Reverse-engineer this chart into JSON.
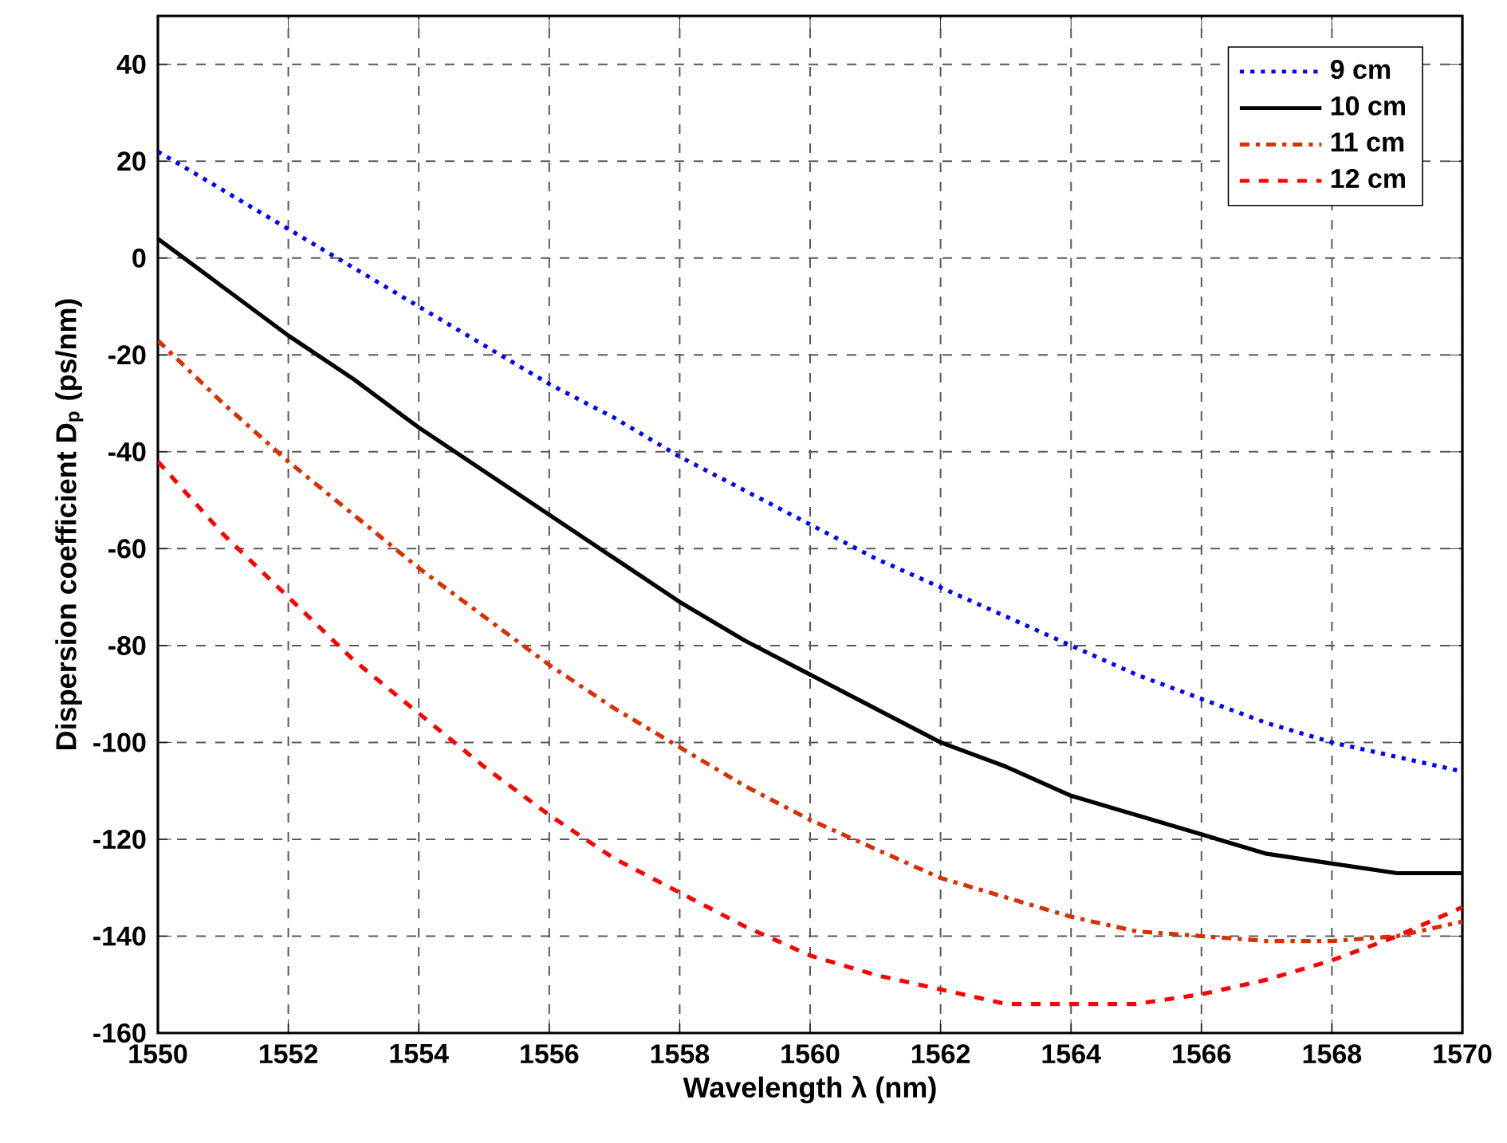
{
  "chart_data": {
    "type": "line",
    "xlabel": "Wavelength λ (nm)",
    "ylabel": "Dispersion coefficient D$_{p}$ (ps/nm)",
    "x": [
      1550,
      1551,
      1552,
      1553,
      1554,
      1555,
      1556,
      1557,
      1558,
      1559,
      1560,
      1561,
      1562,
      1563,
      1564,
      1565,
      1566,
      1567,
      1568,
      1569,
      1570
    ],
    "series": [
      {
        "name": "9 cm",
        "color": "#0000ff",
        "line_style": "dotted",
        "values": [
          22,
          14,
          6,
          -2,
          -10,
          -18,
          -26,
          -33,
          -41,
          -48,
          -55,
          -62,
          -68,
          -74,
          -80,
          -86,
          -91,
          -96,
          -100,
          -103,
          -106
        ]
      },
      {
        "name": "10 cm",
        "color": "#000000",
        "line_style": "solid",
        "values": [
          4,
          -6,
          -16,
          -25,
          -35,
          -44,
          -53,
          -62,
          -71,
          -79,
          -86,
          -93,
          -100,
          -105,
          -111,
          -115,
          -119,
          -123,
          -125,
          -127,
          -127
        ]
      },
      {
        "name": "11 cm",
        "color": "#d93000",
        "line_style": "dashdot",
        "values": [
          -17,
          -30,
          -42,
          -53,
          -64,
          -74,
          -84,
          -93,
          -101,
          -109,
          -116,
          -122,
          -128,
          -132,
          -136,
          -139,
          -140,
          -141,
          -141,
          -140,
          -137
        ]
      },
      {
        "name": "12 cm",
        "color": "#ff0000",
        "line_style": "dashed",
        "values": [
          -42,
          -57,
          -70,
          -83,
          -94,
          -105,
          -115,
          -124,
          -131,
          -138,
          -144,
          -148,
          -151,
          -154,
          -154,
          -154,
          -152,
          -149,
          -145,
          -140,
          -134
        ]
      }
    ],
    "xlim": [
      1550,
      1570
    ],
    "xticks": [
      1550,
      1552,
      1554,
      1556,
      1558,
      1560,
      1562,
      1564,
      1566,
      1568,
      1570
    ],
    "ylim": [
      -160,
      50
    ],
    "yticks": [
      -160,
      -140,
      -120,
      -100,
      -80,
      -60,
      -40,
      -20,
      0,
      20,
      40
    ],
    "grid": true,
    "legend": "top right",
    "marker": "none"
  }
}
